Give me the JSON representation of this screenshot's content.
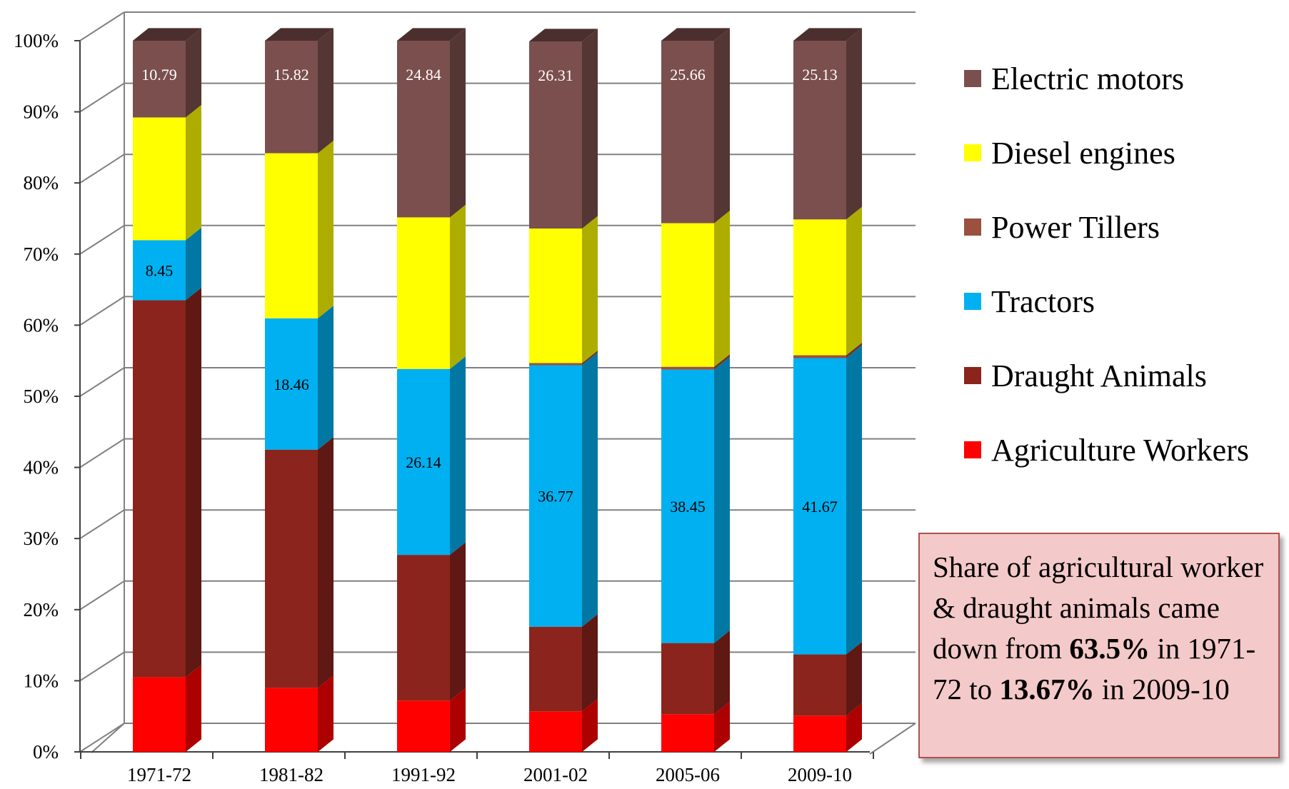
{
  "chart_data": {
    "type": "bar",
    "stacked": true,
    "percent_stacked": true,
    "three_d": true,
    "categories": [
      "1971-72",
      "1981-82",
      "1991-92",
      "2001-02",
      "2005-06",
      "2009-10"
    ],
    "series": [
      {
        "name": "Agriculture Workers",
        "color": "#ff0000",
        "values": [
          10.5,
          9.0,
          7.2,
          5.7,
          5.3,
          5.1
        ]
      },
      {
        "name": "Draught Animals",
        "color": "#8b241c",
        "values": [
          53.0,
          33.5,
          20.5,
          11.9,
          10.0,
          8.6
        ]
      },
      {
        "name": "Tractors",
        "color": "#00b0f0",
        "values": [
          8.45,
          18.46,
          26.14,
          36.77,
          38.45,
          41.67
        ]
      },
      {
        "name": "Power Tillers",
        "color": "#9b5040",
        "values": [
          0.0,
          0.0,
          0.0,
          0.3,
          0.4,
          0.4
        ]
      },
      {
        "name": "Diesel engines",
        "color": "#ffff00",
        "values": [
          17.26,
          23.22,
          21.32,
          18.92,
          20.19,
          19.1
        ]
      },
      {
        "name": "Electric motors",
        "color": "#7b4f4d",
        "values": [
          10.79,
          15.82,
          24.84,
          26.31,
          25.66,
          25.13
        ]
      }
    ],
    "data_labels": [
      {
        "series": "Tractors",
        "category": "1971-72",
        "text": "8.45"
      },
      {
        "series": "Tractors",
        "category": "1981-82",
        "text": "18.46"
      },
      {
        "series": "Tractors",
        "category": "1991-92",
        "text": "26.14"
      },
      {
        "series": "Tractors",
        "category": "2001-02",
        "text": "36.77"
      },
      {
        "series": "Tractors",
        "category": "2005-06",
        "text": "38.45"
      },
      {
        "series": "Tractors",
        "category": "2009-10",
        "text": "41.67"
      },
      {
        "series": "Electric motors",
        "category": "1971-72",
        "text": "10.79"
      },
      {
        "series": "Electric motors",
        "category": "1981-82",
        "text": "15.82"
      },
      {
        "series": "Electric motors",
        "category": "1991-92",
        "text": "24.84"
      },
      {
        "series": "Electric motors",
        "category": "2001-02",
        "text": "26.31"
      },
      {
        "series": "Electric motors",
        "category": "2005-06",
        "text": "25.66"
      },
      {
        "series": "Electric motors",
        "category": "2009-10",
        "text": "25.13"
      }
    ],
    "y_ticks": [
      "0%",
      "10%",
      "20%",
      "30%",
      "40%",
      "50%",
      "60%",
      "70%",
      "80%",
      "90%",
      "100%"
    ],
    "ylim": [
      0,
      100
    ],
    "grid": true,
    "legend_position": "right",
    "legend_order": [
      "Electric motors",
      "Diesel engines",
      "Power Tillers",
      "Tractors",
      "Draught Animals",
      "Agriculture Workers"
    ],
    "title": "",
    "xlabel": "",
    "ylabel": ""
  },
  "legend_items": [
    {
      "label": "Electric motors",
      "color": "#7b4f4d"
    },
    {
      "label": "Diesel engines",
      "color": "#ffff00"
    },
    {
      "label": "Power Tillers",
      "color": "#9b5040"
    },
    {
      "label": "Tractors",
      "color": "#00b0f0"
    },
    {
      "label": "Draught Animals",
      "color": "#8b241c"
    },
    {
      "label": "Agriculture Workers",
      "color": "#ff0000"
    }
  ],
  "note": {
    "text_1": "Share of agricultural worker & draught animals came down from ",
    "bold_1": "63.5%",
    "text_2": " in 1971-72 to ",
    "bold_2": "13.67%",
    "text_3": " in 2009-10"
  }
}
